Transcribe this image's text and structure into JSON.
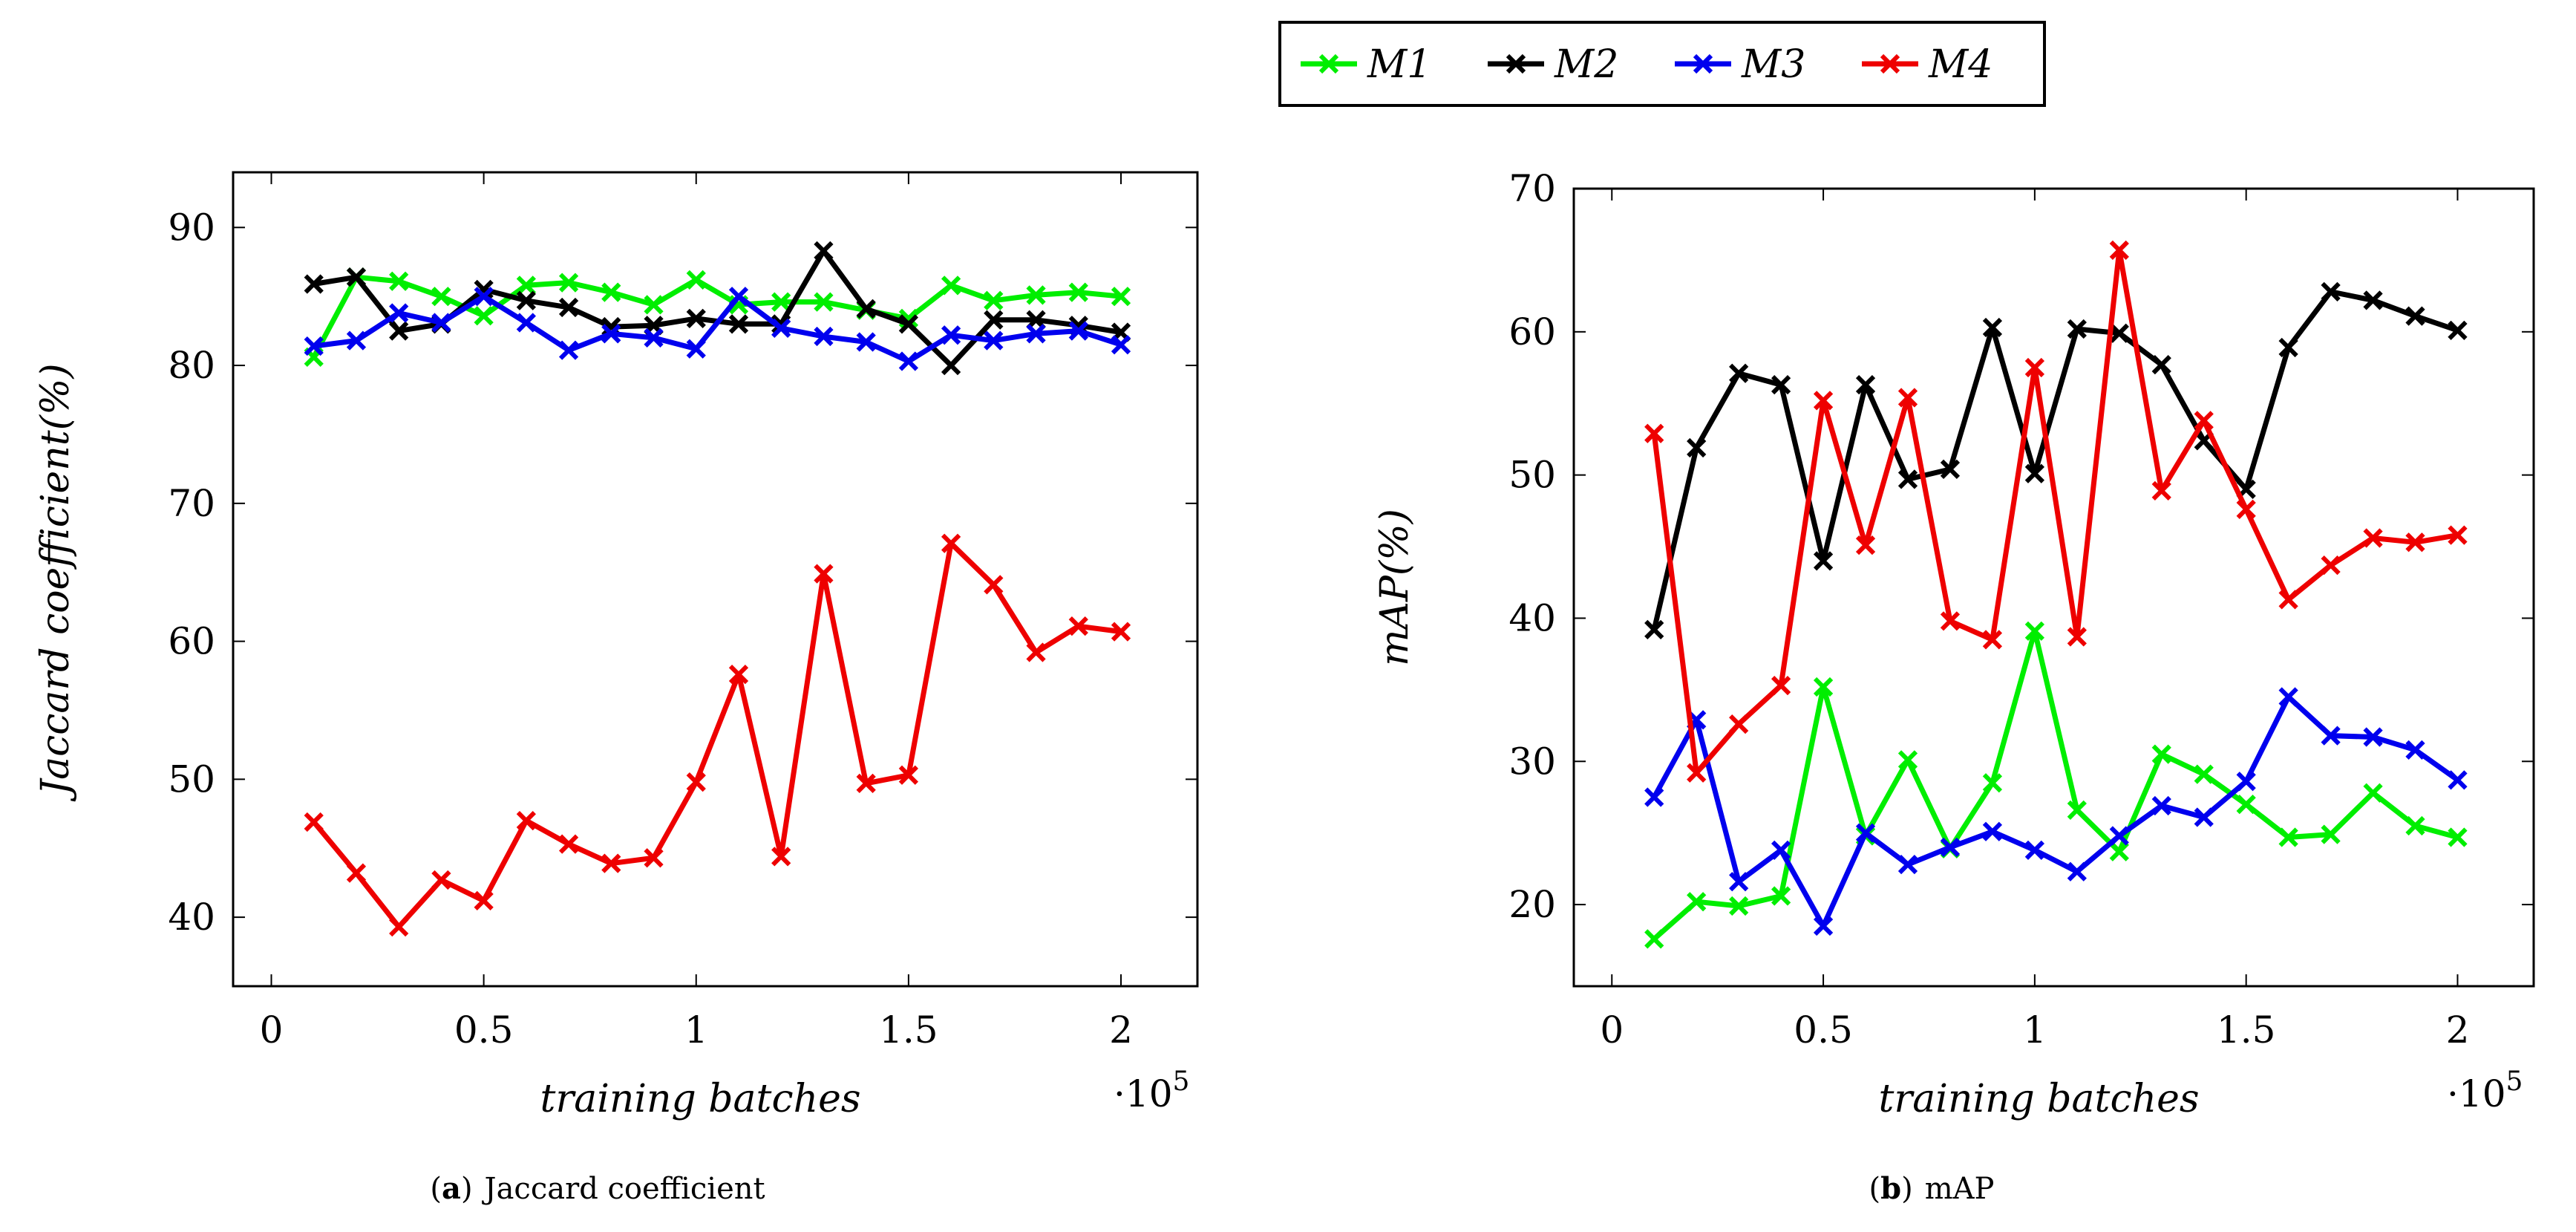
{
  "chart_data": [
    {
      "type": "line",
      "panel": "a",
      "caption_letter": "a",
      "caption": "Jaccard coefficient",
      "xlabel": "training batches",
      "ylabel": "Jaccard coefficient(%)",
      "x_multiplier": "·10",
      "x_multiplier_exp": "5",
      "xlim": [
        -0.09,
        2.18
      ],
      "ylim": [
        35,
        94
      ],
      "xticks": [
        0,
        0.5,
        1,
        1.5,
        2
      ],
      "xtick_labels": [
        "0",
        "0.5",
        "1",
        "1.5",
        "2"
      ],
      "yticks": [
        40,
        50,
        60,
        70,
        80,
        90
      ],
      "ytick_labels": [
        "40",
        "50",
        "60",
        "70",
        "80",
        "90"
      ],
      "x": [
        0.1,
        0.2,
        0.3,
        0.4,
        0.5,
        0.6,
        0.7,
        0.8,
        0.9,
        1.0,
        1.1,
        1.2,
        1.3,
        1.4,
        1.5,
        1.6,
        1.7,
        1.8,
        1.9,
        2.0
      ],
      "series": [
        {
          "name": "M1",
          "color": "#00ee00",
          "values": [
            80.6,
            86.4,
            86.1,
            85.0,
            83.6,
            85.8,
            86.0,
            85.3,
            84.4,
            86.2,
            84.4,
            84.6,
            84.6,
            84.0,
            83.4,
            85.8,
            84.7,
            85.1,
            85.3,
            85.0
          ]
        },
        {
          "name": "M2",
          "color": "#000000",
          "values": [
            85.9,
            86.4,
            82.5,
            83.0,
            85.5,
            84.7,
            84.2,
            82.8,
            82.9,
            83.4,
            83.0,
            83.0,
            88.3,
            84.1,
            83.0,
            80.0,
            83.3,
            83.3,
            82.9,
            82.4
          ]
        },
        {
          "name": "M3",
          "color": "#0000ee",
          "values": [
            81.4,
            81.8,
            83.8,
            83.1,
            85.0,
            83.1,
            81.1,
            82.3,
            82.0,
            81.2,
            85.0,
            82.7,
            82.1,
            81.7,
            80.3,
            82.2,
            81.8,
            82.3,
            82.5,
            81.5
          ]
        },
        {
          "name": "M4",
          "color": "#ee0000",
          "values": [
            46.9,
            43.2,
            39.3,
            42.7,
            41.2,
            47.0,
            45.3,
            43.9,
            44.3,
            49.8,
            57.6,
            44.4,
            64.9,
            49.7,
            50.3,
            67.1,
            64.1,
            59.2,
            61.1,
            60.7
          ]
        }
      ]
    },
    {
      "type": "line",
      "panel": "b",
      "caption_letter": "b",
      "caption": "mAP",
      "xlabel": "training batches",
      "ylabel": "mAP(%)",
      "x_multiplier": "·10",
      "x_multiplier_exp": "5",
      "xlim": [
        -0.09,
        2.18
      ],
      "ylim": [
        14.3,
        70
      ],
      "xticks": [
        0,
        0.5,
        1,
        1.5,
        2
      ],
      "xtick_labels": [
        "0",
        "0.5",
        "1",
        "1.5",
        "2"
      ],
      "yticks": [
        20,
        30,
        40,
        50,
        60,
        70
      ],
      "ytick_labels": [
        "20",
        "30",
        "40",
        "50",
        "60",
        "70"
      ],
      "x": [
        0.1,
        0.2,
        0.3,
        0.4,
        0.5,
        0.6,
        0.7,
        0.8,
        0.9,
        1.0,
        1.1,
        1.2,
        1.3,
        1.4,
        1.5,
        1.6,
        1.7,
        1.8,
        1.9,
        2.0
      ],
      "series": [
        {
          "name": "M1",
          "color": "#00ee00",
          "values": [
            17.6,
            20.2,
            19.9,
            20.6,
            35.2,
            24.8,
            30.1,
            23.9,
            28.5,
            39.1,
            26.6,
            23.7,
            30.5,
            29.1,
            27.0,
            24.7,
            24.9,
            27.8,
            25.5,
            24.7
          ]
        },
        {
          "name": "M2",
          "color": "#000000",
          "values": [
            39.2,
            51.9,
            57.1,
            56.3,
            44.0,
            56.3,
            49.7,
            50.4,
            60.3,
            50.1,
            60.2,
            59.9,
            57.7,
            52.4,
            49.0,
            58.9,
            62.8,
            62.2,
            61.1,
            60.1
          ]
        },
        {
          "name": "M3",
          "color": "#0000ee",
          "values": [
            27.5,
            32.9,
            21.6,
            23.8,
            18.5,
            25.0,
            22.8,
            24.0,
            25.1,
            23.8,
            22.3,
            24.8,
            26.9,
            26.1,
            28.6,
            34.5,
            31.8,
            31.7,
            30.8,
            28.7
          ]
        },
        {
          "name": "M4",
          "color": "#ee0000",
          "values": [
            52.9,
            29.2,
            32.6,
            35.3,
            55.2,
            45.1,
            55.4,
            39.8,
            38.5,
            57.5,
            38.7,
            65.7,
            48.9,
            53.8,
            47.6,
            41.3,
            43.7,
            45.6,
            45.3,
            45.8
          ]
        }
      ]
    }
  ],
  "legend": {
    "entries": [
      {
        "label": "M1",
        "color": "#00ee00"
      },
      {
        "label": "M2",
        "color": "#000000"
      },
      {
        "label": "M3",
        "color": "#0000ee"
      },
      {
        "label": "M4",
        "color": "#ee0000"
      }
    ]
  }
}
